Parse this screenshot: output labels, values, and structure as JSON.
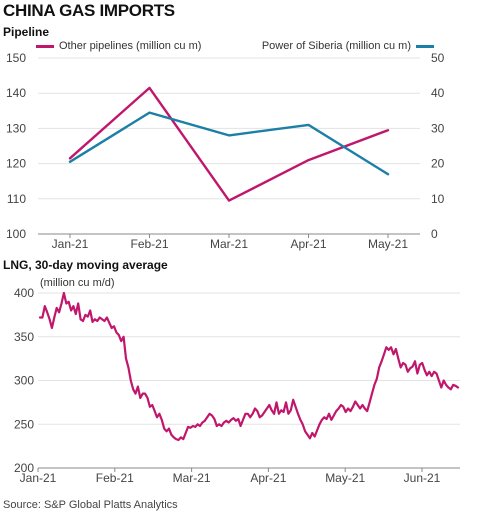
{
  "title": "CHINA GAS IMPORTS",
  "source": "Source: S&P Global Platts Analytics",
  "colors": {
    "magenta": "#c0176c",
    "blue": "#1b7fa6",
    "grid": "#e3e3e3",
    "axis": "#888888"
  },
  "chart_data": [
    {
      "type": "line",
      "subtitle": "Pipeline",
      "categories": [
        "Jan-21",
        "Feb-21",
        "Mar-21",
        "Apr-21",
        "May-21"
      ],
      "left_axis": {
        "ylim": [
          100,
          150
        ],
        "ticks": [
          "100",
          "110",
          "120",
          "130",
          "140",
          "150"
        ]
      },
      "right_axis": {
        "ylim": [
          0,
          50
        ],
        "ticks": [
          "0",
          "10",
          "20",
          "30",
          "40",
          "50"
        ]
      },
      "series": [
        {
          "name": "Other pipelines (million cu m)",
          "axis": "left",
          "color": "#c0176c",
          "values": [
            121.5,
            141.5,
            109.5,
            121.0,
            129.5
          ]
        },
        {
          "name": "Power of Siberia (million cu m)",
          "axis": "right",
          "color": "#1b7fa6",
          "values": [
            20.5,
            34.5,
            28.0,
            31.0,
            17.0
          ]
        }
      ],
      "legend": "top"
    },
    {
      "type": "line",
      "subtitle": "LNG, 30-day moving average",
      "ylabel": "(million cu m/d)",
      "ylim": [
        200,
        400
      ],
      "yticks": [
        "200",
        "250",
        "300",
        "350",
        "400"
      ],
      "xticks": [
        "Jan-21",
        "Feb-21",
        "Mar-21",
        "Apr-21",
        "May-21",
        "Jun-21"
      ],
      "x_range": [
        "2021-01-01",
        "2021-06-26"
      ],
      "series": [
        {
          "color": "#c0176c",
          "values": [
            372,
            372,
            385,
            378,
            370,
            360,
            372,
            383,
            378,
            388,
            400,
            388,
            390,
            380,
            385,
            376,
            388,
            370,
            368,
            375,
            373,
            380,
            367,
            370,
            368,
            372,
            370,
            368,
            372,
            366,
            360,
            362,
            355,
            352,
            345,
            350,
            325,
            315,
            300,
            290,
            285,
            293,
            280,
            285,
            285,
            280,
            270,
            272,
            265,
            258,
            262,
            255,
            245,
            242,
            245,
            238,
            235,
            233,
            232,
            235,
            233,
            240,
            247,
            246,
            248,
            247,
            250,
            248,
            252,
            254,
            258,
            262,
            260,
            256,
            248,
            250,
            248,
            252,
            254,
            252,
            255,
            257,
            254,
            256,
            248,
            255,
            262,
            262,
            258,
            262,
            268,
            265,
            258,
            260,
            264,
            268,
            272,
            266,
            262,
            275,
            262,
            266,
            264,
            275,
            262,
            266,
            278,
            270,
            262,
            255,
            250,
            242,
            238,
            234,
            240,
            236,
            243,
            250,
            255,
            258,
            256,
            262,
            255,
            260,
            265,
            268,
            272,
            270,
            264,
            268,
            265,
            270,
            276,
            272,
            268,
            272,
            268,
            265,
            275,
            285,
            295,
            302,
            315,
            322,
            330,
            338,
            335,
            338,
            330,
            336,
            325,
            315,
            320,
            318,
            310,
            314,
            316,
            322,
            308,
            318,
            320,
            312,
            306,
            310,
            305,
            310,
            308,
            300,
            292,
            300,
            295,
            292,
            290,
            295,
            294,
            292
          ]
        }
      ]
    }
  ]
}
